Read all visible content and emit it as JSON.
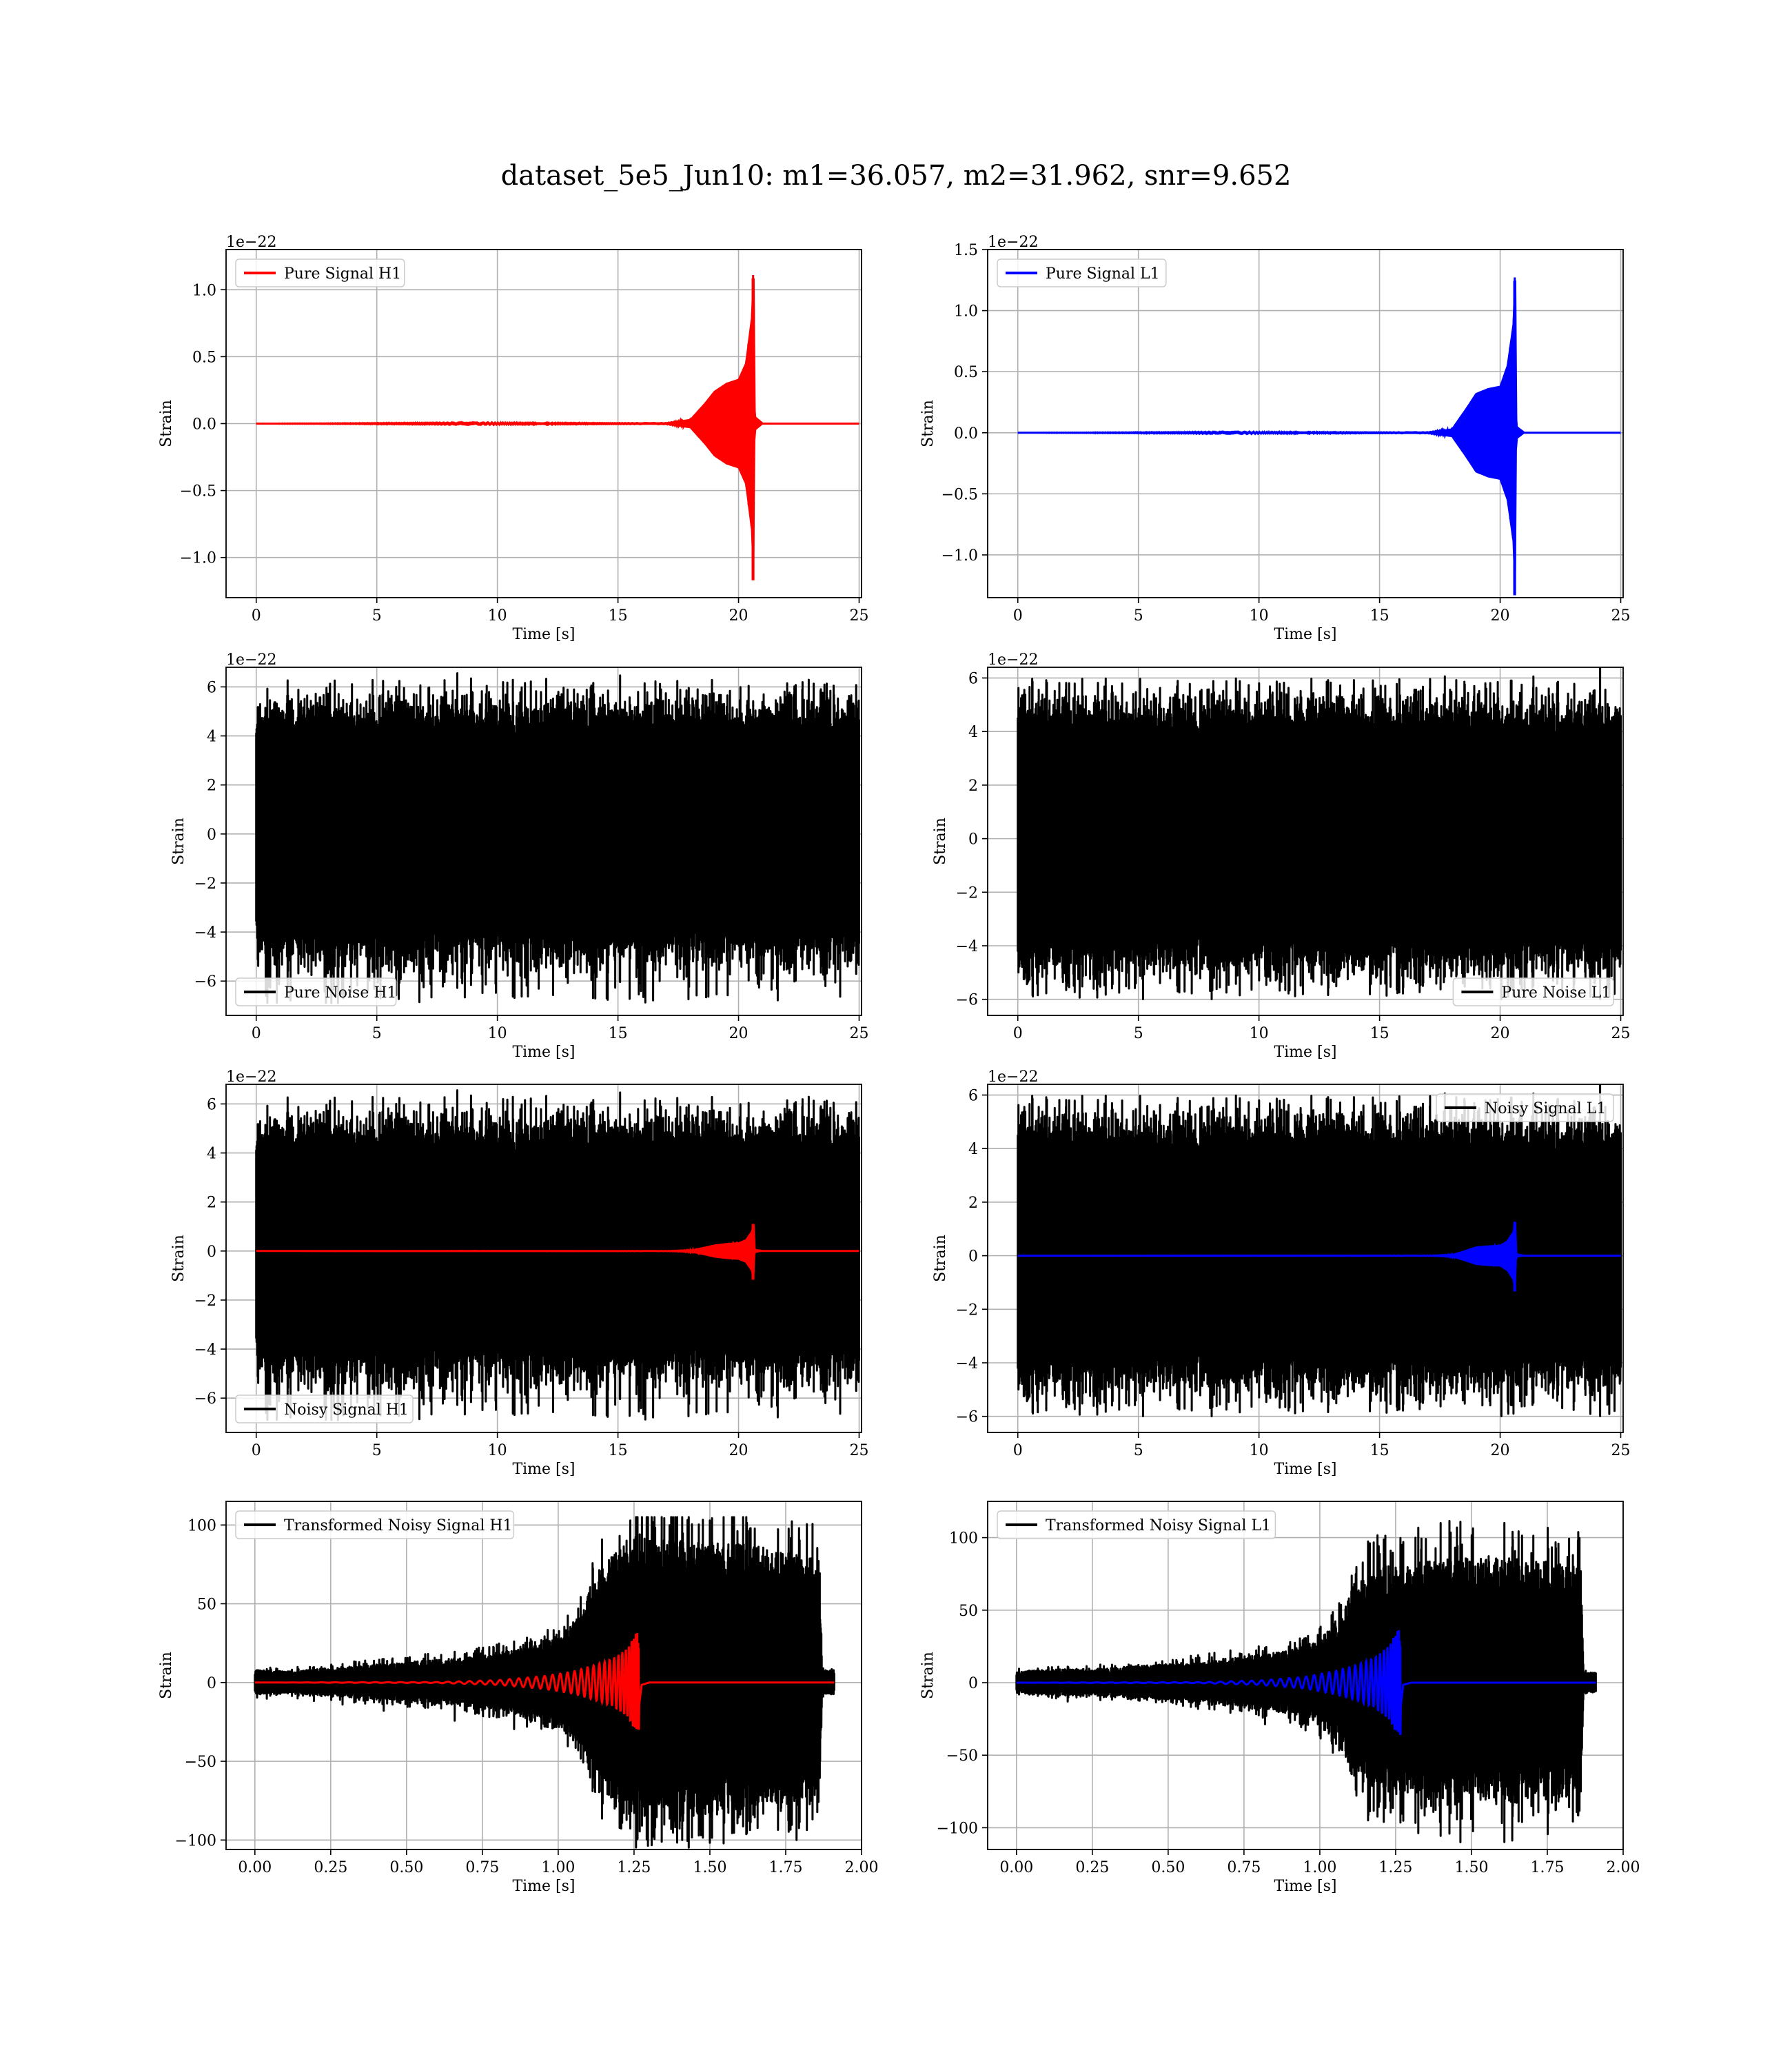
{
  "figure": {
    "suptitle": "dataset_5e5_Jun10: m1=36.057, m2=31.962, snr=9.652"
  },
  "chart_data": [
    {
      "type": "line",
      "id": "pure-signal-h1",
      "xlabel": "Time [s]",
      "ylabel": "Strain",
      "offset_text": "1e−22",
      "xlim": [
        -1.25,
        25.1
      ],
      "ylim": [
        -1.3,
        1.3
      ],
      "xticks": [
        0,
        5,
        10,
        15,
        20,
        25
      ],
      "xtick_labels": [
        "0",
        "5",
        "10",
        "15",
        "20",
        "25"
      ],
      "yticks": [
        -1.0,
        -0.5,
        0.0,
        0.5,
        1.0
      ],
      "ytick_labels": [
        "−1.0",
        "−0.5",
        "0.0",
        "0.5",
        "1.0"
      ],
      "grid": true,
      "legend_position": "upper left",
      "series": [
        {
          "name": "Pure Signal H1",
          "color": "#ff0000",
          "kind": "chirp",
          "t_start": 0,
          "t_end": 25,
          "t_merger": 20.6,
          "envelope_points": [
            [
              0,
              0
            ],
            [
              17,
              0.005
            ],
            [
              18.0,
              0.03
            ],
            [
              18.6,
              0.15
            ],
            [
              19.0,
              0.24
            ],
            [
              19.5,
              0.3
            ],
            [
              20.0,
              0.33
            ],
            [
              20.3,
              0.45
            ],
            [
              20.55,
              0.8
            ],
            [
              20.62,
              1.2
            ],
            [
              20.67,
              0.05
            ],
            [
              21,
              0
            ],
            [
              25,
              0
            ]
          ],
          "min_value": -1.17
        }
      ]
    },
    {
      "type": "line",
      "id": "pure-signal-l1",
      "xlabel": "Time [s]",
      "ylabel": "Strain",
      "offset_text": "1e−22",
      "xlim": [
        -1.25,
        25.1
      ],
      "ylim": [
        -1.35,
        1.5
      ],
      "xticks": [
        0,
        5,
        10,
        15,
        20,
        25
      ],
      "xtick_labels": [
        "0",
        "5",
        "10",
        "15",
        "20",
        "25"
      ],
      "yticks": [
        -1.0,
        -0.5,
        0.0,
        0.5,
        1.0,
        1.5
      ],
      "ytick_labels": [
        "−1.0",
        "−0.5",
        "0.0",
        "0.5",
        "1.0",
        "1.5"
      ],
      "grid": true,
      "legend_position": "upper left",
      "series": [
        {
          "name": "Pure Signal L1",
          "color": "#0000ff",
          "kind": "chirp",
          "t_start": 0,
          "t_end": 25,
          "t_merger": 20.6,
          "envelope_points": [
            [
              0,
              0
            ],
            [
              17,
              0.005
            ],
            [
              18.0,
              0.03
            ],
            [
              18.6,
              0.2
            ],
            [
              19.0,
              0.32
            ],
            [
              19.5,
              0.36
            ],
            [
              20.0,
              0.38
            ],
            [
              20.3,
              0.55
            ],
            [
              20.55,
              0.9
            ],
            [
              20.62,
              1.38
            ],
            [
              20.67,
              0.05
            ],
            [
              21,
              0
            ],
            [
              25,
              0
            ]
          ],
          "min_value": -1.33
        }
      ]
    },
    {
      "type": "line",
      "id": "pure-noise-h1",
      "xlabel": "Time [s]",
      "ylabel": "Strain",
      "offset_text": "1e−22",
      "xlim": [
        -1.25,
        25.1
      ],
      "ylim": [
        -7.4,
        6.8
      ],
      "xticks": [
        0,
        5,
        10,
        15,
        20,
        25
      ],
      "xtick_labels": [
        "0",
        "5",
        "10",
        "15",
        "20",
        "25"
      ],
      "yticks": [
        -6,
        -4,
        -2,
        0,
        2,
        4,
        6
      ],
      "ytick_labels": [
        "−6",
        "−4",
        "−2",
        "0",
        "2",
        "4",
        "6"
      ],
      "grid": true,
      "legend_position": "lower left",
      "series": [
        {
          "name": "Pure Noise H1",
          "color": "#000000",
          "kind": "noise",
          "t_start": 0,
          "t_end": 25,
          "max_value": 6.3,
          "min_value": -6.9,
          "seed": 11
        }
      ]
    },
    {
      "type": "line",
      "id": "pure-noise-l1",
      "xlabel": "Time [s]",
      "ylabel": "Strain",
      "offset_text": "1e−22",
      "xlim": [
        -1.25,
        25.1
      ],
      "ylim": [
        -6.6,
        6.4
      ],
      "xticks": [
        0,
        5,
        10,
        15,
        20,
        25
      ],
      "xtick_labels": [
        "0",
        "5",
        "10",
        "15",
        "20",
        "25"
      ],
      "yticks": [
        -6,
        -4,
        -2,
        0,
        2,
        4,
        6
      ],
      "ytick_labels": [
        "−6",
        "−4",
        "−2",
        "0",
        "2",
        "4",
        "6"
      ],
      "grid": true,
      "legend_position": "lower right",
      "series": [
        {
          "name": "Pure Noise L1",
          "color": "#000000",
          "kind": "noise",
          "t_start": 0,
          "t_end": 25,
          "max_value": 6.0,
          "min_value": -6.0,
          "seed": 23
        }
      ]
    },
    {
      "type": "line",
      "id": "noisy-signal-h1",
      "xlabel": "Time [s]",
      "ylabel": "Strain",
      "offset_text": "1e−22",
      "xlim": [
        -1.25,
        25.1
      ],
      "ylim": [
        -7.4,
        6.8
      ],
      "xticks": [
        0,
        5,
        10,
        15,
        20,
        25
      ],
      "xtick_labels": [
        "0",
        "5",
        "10",
        "15",
        "20",
        "25"
      ],
      "yticks": [
        -6,
        -4,
        -2,
        0,
        2,
        4,
        6
      ],
      "ytick_labels": [
        "−6",
        "−4",
        "−2",
        "0",
        "2",
        "4",
        "6"
      ],
      "grid": true,
      "legend_position": "lower left",
      "series": [
        {
          "name": "Noisy Signal H1",
          "color": "#000000",
          "kind": "noise",
          "t_start": 0,
          "t_end": 25,
          "max_value": 6.3,
          "min_value": -6.9,
          "seed": 11
        },
        {
          "name": "",
          "color": "#ff0000",
          "kind": "chirp",
          "t_start": 0,
          "t_end": 25,
          "t_merger": 20.6,
          "envelope_points": [
            [
              0,
              0
            ],
            [
              17,
              0.005
            ],
            [
              18.0,
              0.03
            ],
            [
              18.6,
              0.15
            ],
            [
              19.0,
              0.24
            ],
            [
              19.5,
              0.3
            ],
            [
              20.0,
              0.33
            ],
            [
              20.3,
              0.45
            ],
            [
              20.55,
              0.8
            ],
            [
              20.62,
              1.2
            ],
            [
              20.67,
              0.05
            ],
            [
              21,
              0
            ],
            [
              25,
              0
            ]
          ],
          "min_value": -1.17
        }
      ]
    },
    {
      "type": "line",
      "id": "noisy-signal-l1",
      "xlabel": "Time [s]",
      "ylabel": "Strain",
      "offset_text": "1e−22",
      "xlim": [
        -1.25,
        25.1
      ],
      "ylim": [
        -6.6,
        6.4
      ],
      "xticks": [
        0,
        5,
        10,
        15,
        20,
        25
      ],
      "xtick_labels": [
        "0",
        "5",
        "10",
        "15",
        "20",
        "25"
      ],
      "yticks": [
        -6,
        -4,
        -2,
        0,
        2,
        4,
        6
      ],
      "ytick_labels": [
        "−6",
        "−4",
        "−2",
        "0",
        "2",
        "4",
        "6"
      ],
      "grid": true,
      "legend_position": "upper right",
      "series": [
        {
          "name": "Noisy Signal L1",
          "color": "#000000",
          "kind": "noise",
          "t_start": 0,
          "t_end": 25,
          "max_value": 6.0,
          "min_value": -6.0,
          "seed": 23
        },
        {
          "name": "",
          "color": "#0000ff",
          "kind": "chirp",
          "t_start": 0,
          "t_end": 25,
          "t_merger": 20.6,
          "envelope_points": [
            [
              0,
              0
            ],
            [
              17,
              0.005
            ],
            [
              18.0,
              0.03
            ],
            [
              18.6,
              0.2
            ],
            [
              19.0,
              0.32
            ],
            [
              19.5,
              0.36
            ],
            [
              20.0,
              0.38
            ],
            [
              20.3,
              0.55
            ],
            [
              20.55,
              0.9
            ],
            [
              20.62,
              1.38
            ],
            [
              20.67,
              0.05
            ],
            [
              21,
              0
            ],
            [
              25,
              0
            ]
          ],
          "min_value": -1.33
        }
      ]
    },
    {
      "type": "line",
      "id": "transformed-noisy-signal-h1",
      "xlabel": "Time [s]",
      "ylabel": "Strain",
      "offset_text": "",
      "xlim": [
        -0.095,
        2.0
      ],
      "ylim": [
        -106,
        115
      ],
      "xticks": [
        0.0,
        0.25,
        0.5,
        0.75,
        1.0,
        1.25,
        1.5,
        1.75,
        2.0
      ],
      "xtick_labels": [
        "0.00",
        "0.25",
        "0.50",
        "0.75",
        "1.00",
        "1.25",
        "1.50",
        "1.75",
        "2.00"
      ],
      "yticks": [
        -100,
        -50,
        0,
        50,
        100
      ],
      "ytick_labels": [
        "−100",
        "−50",
        "0",
        "50",
        "100"
      ],
      "grid": true,
      "legend_position": "upper left",
      "series": [
        {
          "name": "Transformed Noisy Signal H1",
          "color": "#000000",
          "kind": "growing-noise",
          "t_start": 0,
          "t_end": 1.91,
          "envelope_points": [
            [
              0,
              8
            ],
            [
              0.1,
              7
            ],
            [
              0.3,
              10
            ],
            [
              0.5,
              13
            ],
            [
              0.7,
              16
            ],
            [
              0.9,
              22
            ],
            [
              1.0,
              28
            ],
            [
              1.08,
              45
            ],
            [
              1.12,
              70
            ],
            [
              1.2,
              85
            ],
            [
              1.25,
              95
            ],
            [
              1.4,
              90
            ],
            [
              1.6,
              88
            ],
            [
              1.8,
              82
            ],
            [
              1.86,
              80
            ],
            [
              1.87,
              8
            ],
            [
              1.91,
              8
            ]
          ],
          "max_value": 105,
          "min_value": -100,
          "seed": 37
        },
        {
          "name": "",
          "color": "#ff0000",
          "kind": "chirp-fast",
          "t_start": 0,
          "t_end": 1.91,
          "t_merger": 1.265,
          "envelope_points": [
            [
              0,
              0
            ],
            [
              0.6,
              0.3
            ],
            [
              0.8,
              1.5
            ],
            [
              0.95,
              4
            ],
            [
              1.05,
              7
            ],
            [
              1.12,
              11
            ],
            [
              1.18,
              15
            ],
            [
              1.23,
              22
            ],
            [
              1.26,
              33
            ],
            [
              1.275,
              2
            ],
            [
              1.3,
              0
            ],
            [
              1.91,
              0
            ]
          ],
          "min_value": -30
        }
      ]
    },
    {
      "type": "line",
      "id": "transformed-noisy-signal-l1",
      "xlabel": "Time [s]",
      "ylabel": "Strain",
      "offset_text": "",
      "xlim": [
        -0.095,
        2.0
      ],
      "ylim": [
        -115,
        125
      ],
      "xticks": [
        0.0,
        0.25,
        0.5,
        0.75,
        1.0,
        1.25,
        1.5,
        1.75,
        2.0
      ],
      "xtick_labels": [
        "0.00",
        "0.25",
        "0.50",
        "0.75",
        "1.00",
        "1.25",
        "1.50",
        "1.75",
        "2.00"
      ],
      "yticks": [
        -100,
        -50,
        0,
        50,
        100
      ],
      "ytick_labels": [
        "−100",
        "−50",
        "0",
        "50",
        "100"
      ],
      "grid": true,
      "legend_position": "upper left",
      "series": [
        {
          "name": "Transformed Noisy Signal L1",
          "color": "#000000",
          "kind": "growing-noise",
          "t_start": 0,
          "t_end": 1.91,
          "envelope_points": [
            [
              0,
              8
            ],
            [
              0.1,
              9
            ],
            [
              0.3,
              10
            ],
            [
              0.5,
              13
            ],
            [
              0.7,
              17
            ],
            [
              0.9,
              22
            ],
            [
              1.0,
              30
            ],
            [
              1.08,
              50
            ],
            [
              1.12,
              72
            ],
            [
              1.2,
              80
            ],
            [
              1.3,
              82
            ],
            [
              1.5,
              88
            ],
            [
              1.7,
              85
            ],
            [
              1.86,
              80
            ],
            [
              1.87,
              7
            ],
            [
              1.91,
              7
            ]
          ],
          "max_value": 115,
          "min_value": -110,
          "seed": 53
        },
        {
          "name": "",
          "color": "#0000ff",
          "kind": "chirp-fast",
          "t_start": 0,
          "t_end": 1.91,
          "t_merger": 1.265,
          "envelope_points": [
            [
              0,
              0
            ],
            [
              0.6,
              0.3
            ],
            [
              0.8,
              1.5
            ],
            [
              0.95,
              4
            ],
            [
              1.05,
              8
            ],
            [
              1.12,
              12
            ],
            [
              1.18,
              17
            ],
            [
              1.23,
              26
            ],
            [
              1.26,
              38
            ],
            [
              1.275,
              2
            ],
            [
              1.3,
              0
            ],
            [
              1.91,
              0
            ]
          ],
          "min_value": -36
        }
      ]
    }
  ]
}
